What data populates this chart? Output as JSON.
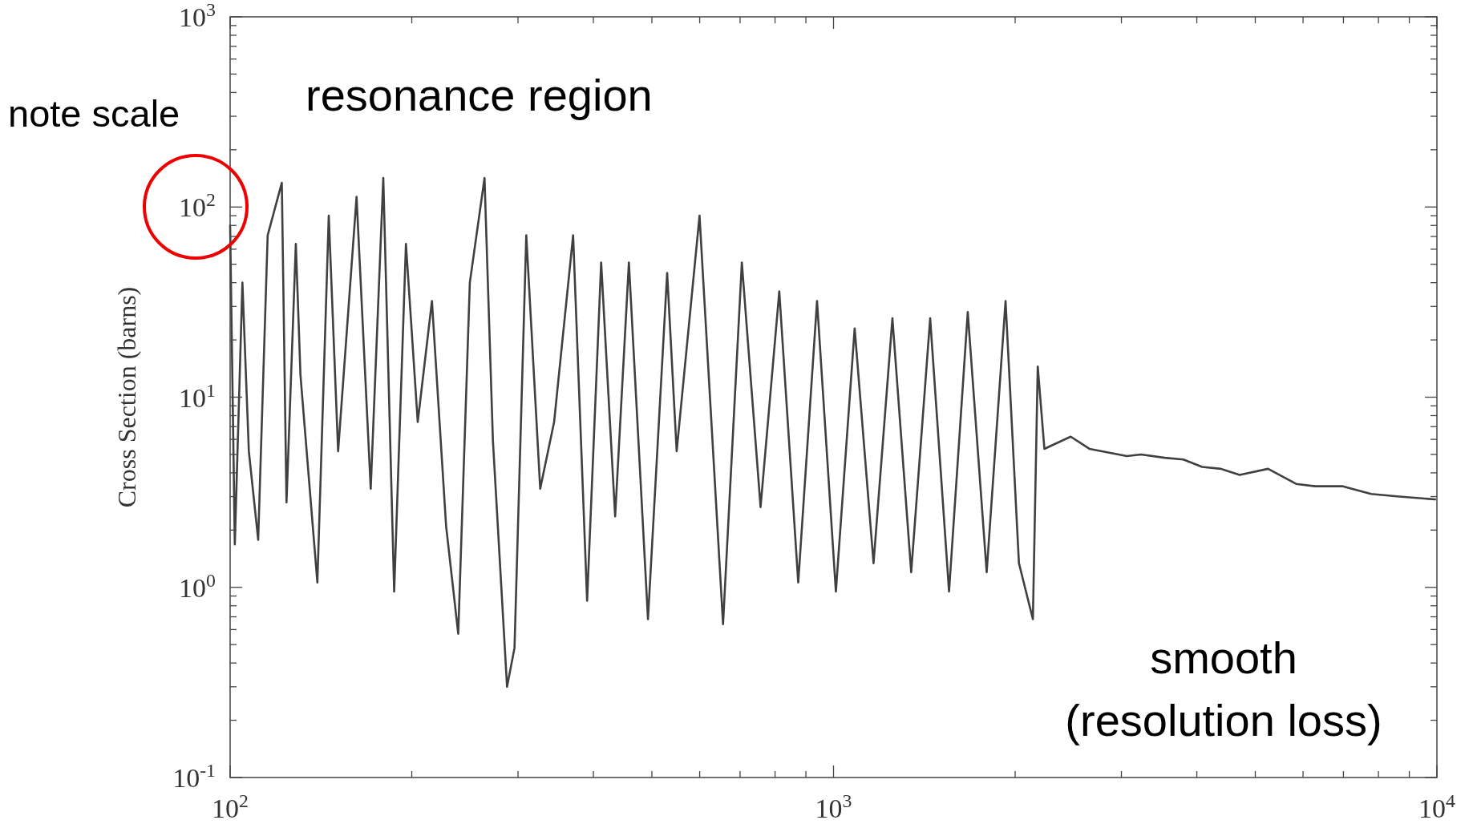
{
  "chart_data": {
    "type": "line",
    "ylabel": "Cross Section (barns)",
    "log": "xy",
    "grid": false,
    "line_style": "solid",
    "xlim": [
      100,
      10000
    ],
    "ylim": [
      0.1,
      1000
    ],
    "xticks": [
      {
        "value": 100,
        "label": "10$^{2}$"
      },
      {
        "value": 200,
        "label": null
      },
      {
        "value": 300,
        "label": null
      },
      {
        "value": 400,
        "label": null
      },
      {
        "value": 500,
        "label": null
      },
      {
        "value": 600,
        "label": null
      },
      {
        "value": 700,
        "label": null
      },
      {
        "value": 800,
        "label": null
      },
      {
        "value": 900,
        "label": null
      },
      {
        "value": 1000,
        "label": "10$^{3}$"
      },
      {
        "value": 2000,
        "label": null
      },
      {
        "value": 3000,
        "label": null
      },
      {
        "value": 4000,
        "label": null
      },
      {
        "value": 5000,
        "label": null
      },
      {
        "value": 6000,
        "label": null
      },
      {
        "value": 7000,
        "label": null
      },
      {
        "value": 8000,
        "label": null
      },
      {
        "value": 9000,
        "label": null
      },
      {
        "value": 10000,
        "label": "10$^{4}$"
      }
    ],
    "yticks": [
      {
        "value": 0.1,
        "label": "10$^{-1}$"
      },
      {
        "value": 0.2,
        "label": null
      },
      {
        "value": 0.3,
        "label": null
      },
      {
        "value": 0.4,
        "label": null
      },
      {
        "value": 0.5,
        "label": null
      },
      {
        "value": 0.6,
        "label": null
      },
      {
        "value": 0.7,
        "label": null
      },
      {
        "value": 0.8,
        "label": null
      },
      {
        "value": 0.9,
        "label": null
      },
      {
        "value": 1,
        "label": "10$^{0}$"
      },
      {
        "value": 2,
        "label": null
      },
      {
        "value": 3,
        "label": null
      },
      {
        "value": 4,
        "label": null
      },
      {
        "value": 5,
        "label": null
      },
      {
        "value": 6,
        "label": null
      },
      {
        "value": 7,
        "label": null
      },
      {
        "value": 8,
        "label": null
      },
      {
        "value": 9,
        "label": null
      },
      {
        "value": 10,
        "label": "10$^{1}$"
      },
      {
        "value": 20,
        "label": null
      },
      {
        "value": 30,
        "label": null
      },
      {
        "value": 40,
        "label": null
      },
      {
        "value": 50,
        "label": null
      },
      {
        "value": 60,
        "label": null
      },
      {
        "value": 70,
        "label": null
      },
      {
        "value": 80,
        "label": null
      },
      {
        "value": 90,
        "label": null
      },
      {
        "value": 100,
        "label": "10$^{2}$"
      },
      {
        "value": 200,
        "label": null
      },
      {
        "value": 300,
        "label": null
      },
      {
        "value": 400,
        "label": null
      },
      {
        "value": 500,
        "label": null
      },
      {
        "value": 600,
        "label": null
      },
      {
        "value": 700,
        "label": null
      },
      {
        "value": 800,
        "label": null
      },
      {
        "value": 900,
        "label": null
      },
      {
        "value": 1000,
        "label": "10$^{3}$"
      }
    ],
    "series": [
      {
        "color": "#404040",
        "x": [
          100,
          101.8,
          104.8,
          107.4,
          111.3,
          115.4,
          121.8,
          124,
          128.5,
          130.8,
          139.5,
          145.7,
          151,
          162,
          171,
          179.4,
          187,
          195.6,
          204.6,
          216,
          228,
          238.8,
          249.6,
          264,
          272.6,
          287.7,
          296,
          309.6,
          326.5,
          344.3,
          370.2,
          390.5,
          412,
          434.6,
          458,
          492.6,
          530,
          549.6,
          599.7,
          656,
          704.8,
          757,
          813,
          874,
          939,
          1009,
          1084,
          1165,
          1252,
          1345,
          1446,
          1554,
          1669,
          1794,
          1928,
          2029,
          2140,
          2180,
          2236,
          2472,
          2655,
          3063,
          3234,
          3540,
          3800,
          4083,
          4385,
          4710,
          5250,
          5843,
          6279,
          6985,
          7780,
          8665,
          9930
        ],
        "values": [
          80,
          1.68,
          40,
          5.2,
          1.78,
          71,
          134,
          2.8,
          64,
          13,
          1.06,
          90,
          5.2,
          113,
          3.3,
          142,
          0.95,
          64,
          7.4,
          32,
          2.1,
          0.57,
          40,
          142,
          5.9,
          0.3,
          0.48,
          71,
          3.3,
          7.4,
          71,
          0.85,
          51,
          2.36,
          51,
          0.68,
          45,
          5.2,
          90,
          0.64,
          51,
          2.64,
          36,
          1.06,
          32,
          0.95,
          23,
          1.34,
          26,
          1.2,
          26,
          0.95,
          28,
          1.2,
          32,
          1.34,
          0.68,
          14.5,
          5.35,
          6.2,
          5.35,
          4.9,
          5,
          4.8,
          4.7,
          4.3,
          4.2,
          3.9,
          4.2,
          3.5,
          3.4,
          3.4,
          3.1,
          3,
          2.9
        ]
      }
    ],
    "annotations": [
      "resonance region",
      "note scale",
      "smooth\n(resolution loss)"
    ]
  }
}
